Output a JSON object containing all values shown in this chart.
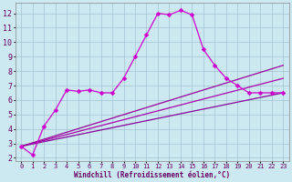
{
  "xlabel": "Windchill (Refroidissement éolien,°C)",
  "background_color": "#cce8f0",
  "grid_color": "#99bbcc",
  "xlim": [
    -0.5,
    23.5
  ],
  "ylim": [
    1.8,
    12.7
  ],
  "xticks": [
    0,
    1,
    2,
    3,
    4,
    5,
    6,
    7,
    8,
    9,
    10,
    11,
    12,
    13,
    14,
    15,
    16,
    17,
    18,
    19,
    20,
    21,
    22,
    23
  ],
  "yticks": [
    2,
    3,
    4,
    5,
    6,
    7,
    8,
    9,
    10,
    11,
    12
  ],
  "line_main": {
    "x": [
      0,
      1,
      2,
      3,
      4,
      5,
      6,
      7,
      8,
      9,
      10,
      11,
      12,
      13,
      14,
      15,
      16,
      17,
      18,
      19,
      20,
      21,
      22,
      23
    ],
    "y": [
      2.8,
      2.2,
      4.2,
      5.3,
      6.7,
      6.6,
      6.7,
      6.5,
      6.5,
      7.5,
      9.0,
      10.5,
      12.0,
      11.9,
      12.2,
      11.9,
      9.5,
      8.4,
      7.5,
      7.0,
      6.5,
      6.5,
      6.5,
      6.5
    ],
    "color": "#cc00cc",
    "lw": 0.9,
    "ms": 2.5
  },
  "line_reg1": {
    "x": [
      0,
      23
    ],
    "y": [
      2.8,
      6.5
    ],
    "color": "#880099",
    "lw": 0.9
  },
  "line_reg2": {
    "x": [
      0,
      23
    ],
    "y": [
      2.8,
      7.5
    ],
    "color": "#aa00aa",
    "lw": 0.9
  },
  "line_reg3": {
    "x": [
      0,
      23
    ],
    "y": [
      2.8,
      8.4
    ],
    "color": "#990099",
    "lw": 0.9
  },
  "tick_fontsize": 5,
  "xlabel_fontsize": 5.5
}
